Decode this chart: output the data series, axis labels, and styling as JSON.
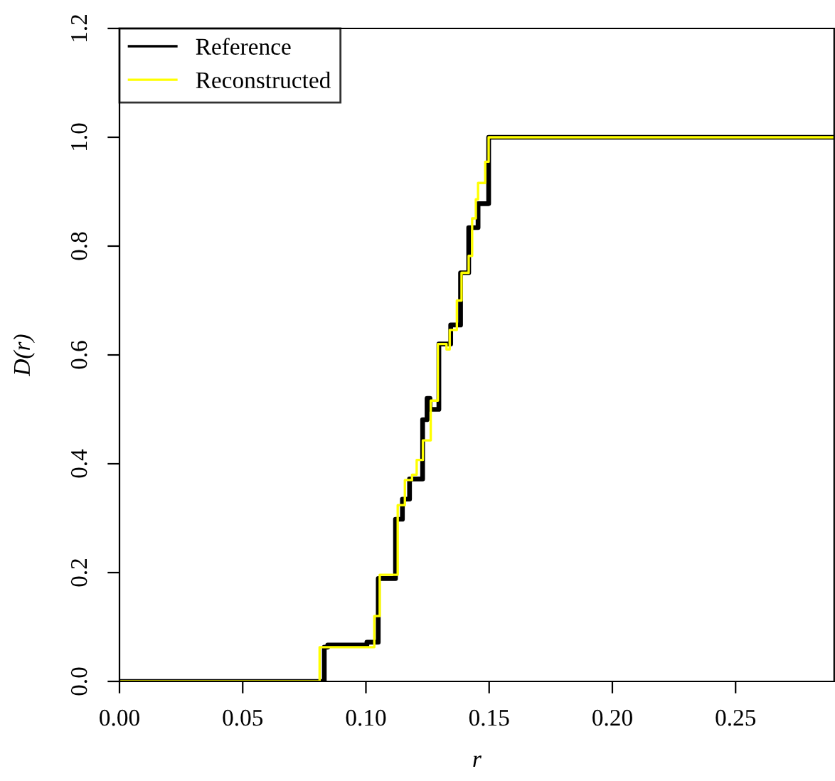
{
  "chart_data": {
    "type": "step",
    "xlabel": "r",
    "ylabel": "D(r)",
    "xlim": [
      0,
      0.29
    ],
    "ylim": [
      0,
      1.2
    ],
    "xticks": [
      {
        "value": 0,
        "label": "0.00"
      },
      {
        "value": 0.05,
        "label": "0.05"
      },
      {
        "value": 0.1,
        "label": "0.10"
      },
      {
        "value": 0.15,
        "label": "0.15"
      },
      {
        "value": 0.2,
        "label": "0.20"
      },
      {
        "value": 0.25,
        "label": "0.25"
      }
    ],
    "yticks": [
      {
        "value": 0,
        "label": "0.0"
      },
      {
        "value": 0.2,
        "label": "0.2"
      },
      {
        "value": 0.4,
        "label": "0.4"
      },
      {
        "value": 0.6,
        "label": "0.6"
      },
      {
        "value": 0.8,
        "label": "0.8"
      },
      {
        "value": 1.0,
        "label": "1.0"
      },
      {
        "value": 1.2,
        "label": "1.2"
      }
    ],
    "grid": false,
    "legend": "top left",
    "marker": "none",
    "line_style": "solid",
    "series": [
      {
        "name": "Reference",
        "color": "#000000",
        "x": [
          0,
          0.0831,
          0.0845,
          0.1004,
          0.105,
          0.112,
          0.1148,
          0.1177,
          0.123,
          0.1248,
          0.126,
          0.1296,
          0.1344,
          0.1384,
          0.1417,
          0.1455,
          0.1498,
          0.29
        ],
        "values": [
          0,
          0.063,
          0.067,
          0.072,
          0.189,
          0.298,
          0.335,
          0.372,
          0.481,
          0.52,
          0.5,
          0.62,
          0.655,
          0.751,
          0.834,
          0.878,
          1.0,
          1.0
        ]
      },
      {
        "name": "Reconstructed",
        "color": "#ffff00",
        "x": [
          0,
          0.0812,
          0.1034,
          0.1056,
          0.1129,
          0.1158,
          0.1187,
          0.1206,
          0.1231,
          0.1263,
          0.1292,
          0.1327,
          0.134,
          0.1369,
          0.1388,
          0.1417,
          0.1431,
          0.1446,
          0.1455,
          0.1484,
          0.1498,
          0.29
        ],
        "values": [
          0,
          0.063,
          0.12,
          0.196,
          0.324,
          0.37,
          0.38,
          0.407,
          0.443,
          0.516,
          0.62,
          0.61,
          0.646,
          0.7,
          0.751,
          0.782,
          0.851,
          0.886,
          0.916,
          0.955,
          1.0,
          1.0
        ]
      }
    ]
  }
}
